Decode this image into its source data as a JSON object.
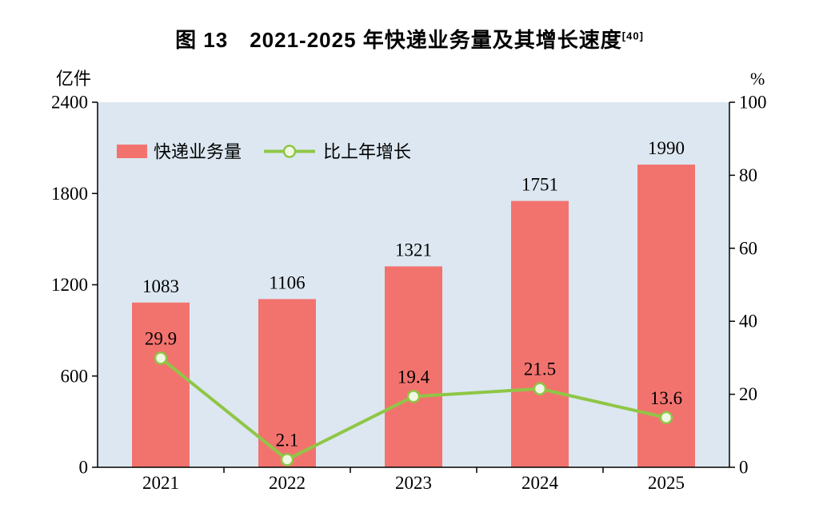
{
  "title": {
    "text": "图 13　2021-2025 年快递业务量及其增长速度",
    "superscript": "[40]"
  },
  "chart_data": {
    "type": "bar+line combo",
    "categories": [
      "2021",
      "2022",
      "2023",
      "2024",
      "2025"
    ],
    "series": [
      {
        "name": "快递业务量",
        "type": "bar",
        "axis": "left",
        "unit": "亿件",
        "values": [
          1083,
          1106,
          1321,
          1751,
          1990
        ],
        "labels": [
          "1083",
          "1106",
          "1321",
          "1751",
          "1990"
        ],
        "color": "#f2736e"
      },
      {
        "name": "比上年增长",
        "type": "line",
        "axis": "right",
        "unit": "%",
        "values": [
          29.9,
          2.1,
          19.4,
          21.5,
          13.6
        ],
        "labels": [
          "29.9",
          "2.1",
          "19.4",
          "21.5",
          "13.6"
        ],
        "color": "#8fc646",
        "marker_fill": "#f1f8e2"
      }
    ],
    "left_axis": {
      "label": "亿件",
      "min": 0,
      "max": 2400,
      "ticks": [
        0,
        600,
        1200,
        1800,
        2400
      ]
    },
    "right_axis": {
      "label": "%",
      "min": 0,
      "max": 100,
      "ticks": [
        0,
        20,
        40,
        60,
        80,
        100
      ]
    },
    "plot_bg": "#dce7f1",
    "grid": false,
    "legend_position": "top-left-inside"
  }
}
